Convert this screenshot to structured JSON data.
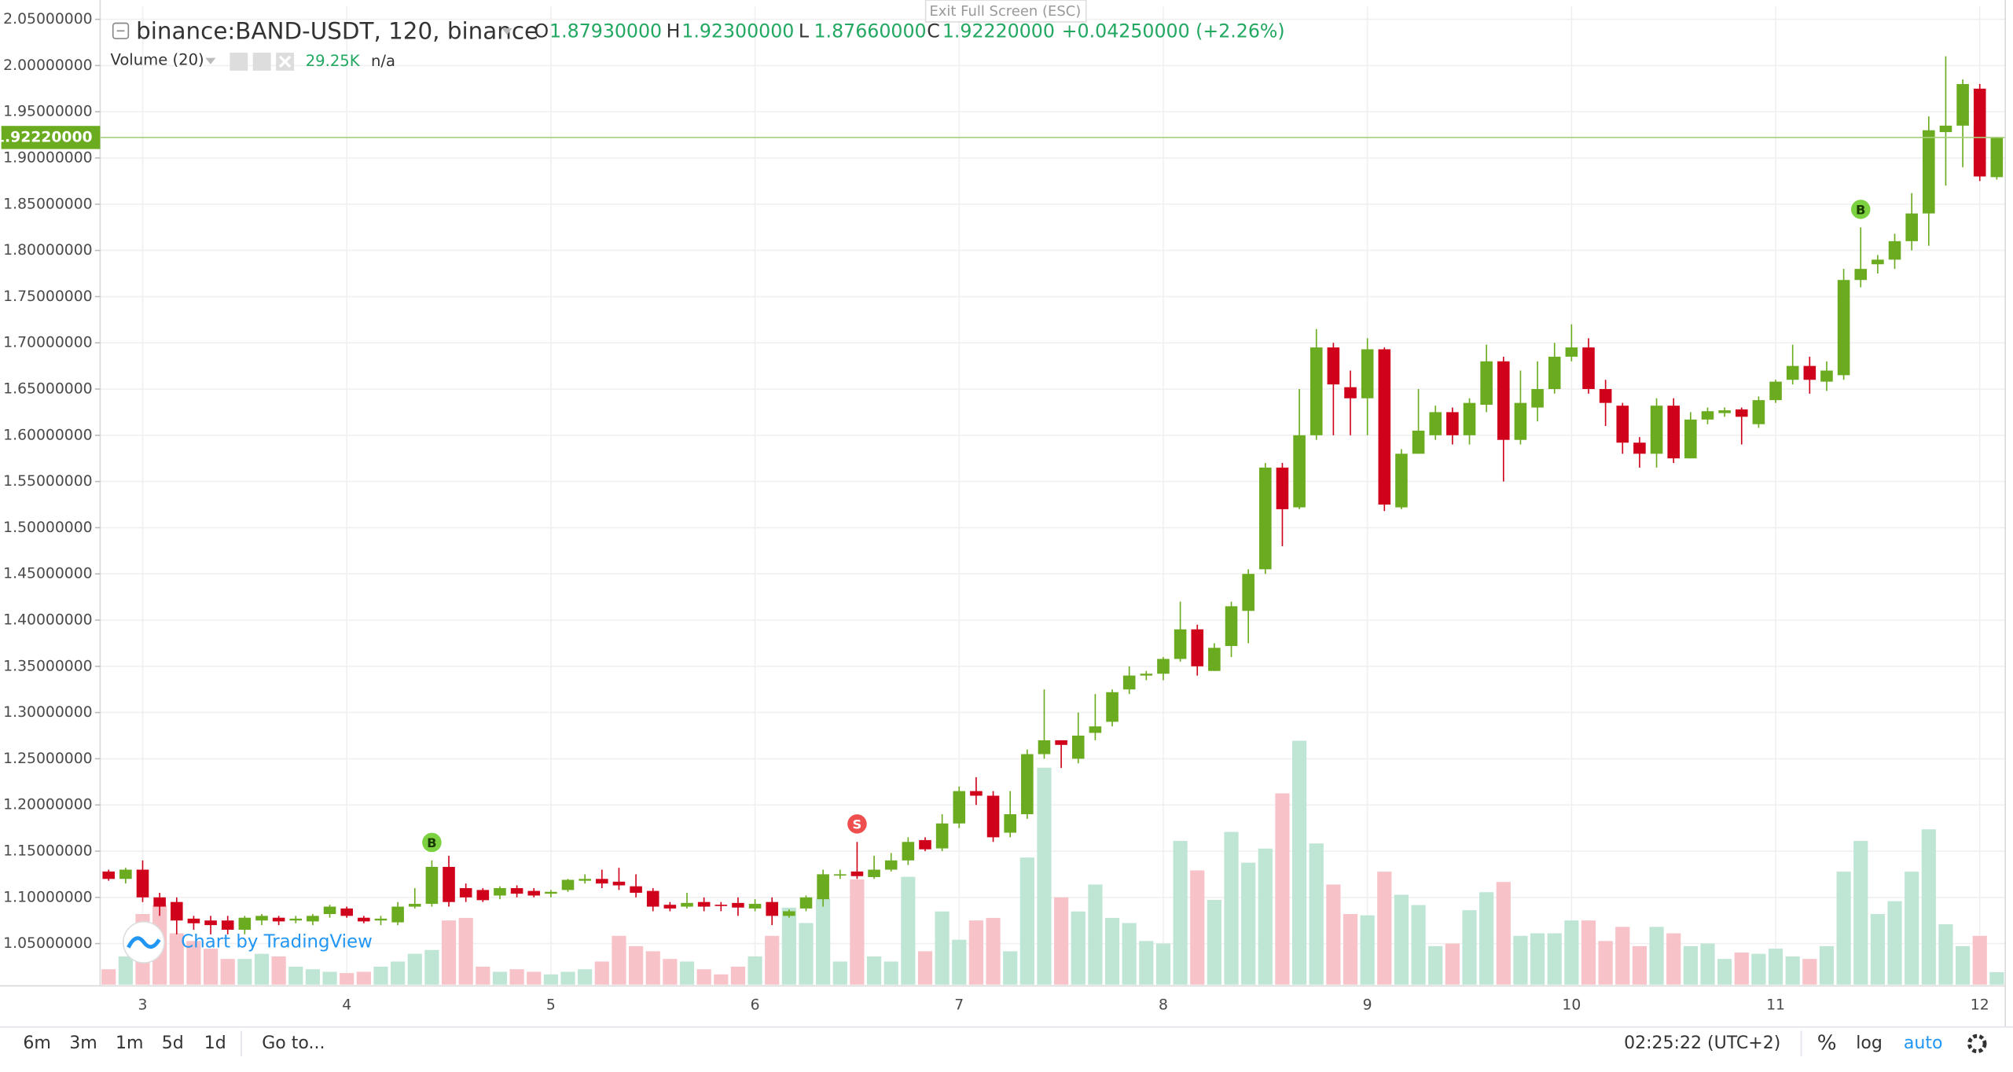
{
  "chart_data": {
    "type": "candlestick",
    "title": "binance:BAND-USDT, 120, binance",
    "legend": {
      "open_key": "O",
      "open": "1.87930000",
      "high_key": "H",
      "high": "1.92300000",
      "low_key": "L",
      "low": "1.87660000",
      "close_key": "C",
      "close": "1.92220000",
      "change": "+0.04250000 (+2.26%)"
    },
    "volume_legend": {
      "title": "Volume (20)",
      "value": "29.25K",
      "ma": "n/a"
    },
    "exit_hint": "Exit Full Screen (ESC)",
    "watermark": "Chart by TradingView",
    "last_price": {
      "value": 1.9222,
      "label": "1.92220000"
    },
    "up_color": "#6aab1f",
    "down_color": "#d0021b",
    "volume_up_color": "#bfe5d5",
    "volume_down_color": "#f7c2c8",
    "grid": true,
    "ylim": [
      1.0056,
      2.0639
    ],
    "yticks": [
      {
        "value": 1.05,
        "label": "1.05000000"
      },
      {
        "value": 1.1,
        "label": "1.10000000"
      },
      {
        "value": 1.15,
        "label": "1.15000000"
      },
      {
        "value": 1.2,
        "label": "1.20000000"
      },
      {
        "value": 1.25,
        "label": "1.25000000"
      },
      {
        "value": 1.3,
        "label": "1.30000000"
      },
      {
        "value": 1.35,
        "label": "1.35000000"
      },
      {
        "value": 1.4,
        "label": "1.40000000"
      },
      {
        "value": 1.45,
        "label": "1.45000000"
      },
      {
        "value": 1.5,
        "label": "1.50000000"
      },
      {
        "value": 1.55,
        "label": "1.55000000"
      },
      {
        "value": 1.6,
        "label": "1.60000000"
      },
      {
        "value": 1.65,
        "label": "1.65000000"
      },
      {
        "value": 1.7,
        "label": "1.70000000"
      },
      {
        "value": 1.75,
        "label": "1.75000000"
      },
      {
        "value": 1.8,
        "label": "1.80000000"
      },
      {
        "value": 1.85,
        "label": "1.85000000"
      },
      {
        "value": 1.9,
        "label": "1.90000000"
      },
      {
        "value": 1.95,
        "label": "1.95000000"
      },
      {
        "value": 2.0,
        "label": "2.00000000"
      },
      {
        "value": 2.05,
        "label": "2.05000000"
      }
    ],
    "categories": [
      null,
      null,
      "3",
      null,
      null,
      null,
      null,
      null,
      null,
      null,
      null,
      null,
      null,
      null,
      "4",
      null,
      null,
      null,
      null,
      null,
      null,
      null,
      null,
      null,
      null,
      null,
      "5",
      null,
      null,
      null,
      null,
      null,
      null,
      null,
      null,
      null,
      null,
      null,
      "6",
      null,
      null,
      null,
      null,
      null,
      null,
      null,
      null,
      null,
      null,
      null,
      "7",
      null,
      null,
      null,
      null,
      null,
      null,
      null,
      null,
      null,
      null,
      null,
      "8",
      null,
      null,
      null,
      null,
      null,
      null,
      null,
      null,
      null,
      null,
      null,
      "9",
      null,
      null,
      null,
      null,
      null,
      null,
      null,
      null,
      null,
      null,
      null,
      "10",
      null,
      null,
      null,
      null,
      null,
      null,
      null,
      null,
      null,
      null,
      null,
      "11",
      null,
      null,
      null,
      null,
      null,
      null,
      null,
      null,
      null,
      null,
      null,
      "12",
      null
    ],
    "open": [
      1.128,
      1.12,
      1.13,
      1.1,
      1.095,
      1.077,
      1.075,
      1.075,
      1.065,
      1.075,
      1.078,
      1.075,
      1.074,
      1.082,
      1.088,
      1.078,
      1.075,
      1.073,
      1.09,
      1.093,
      1.133,
      1.11,
      1.108,
      1.102,
      1.11,
      1.107,
      1.104,
      1.108,
      1.118,
      1.12,
      1.117,
      1.112,
      1.107,
      1.092,
      1.09,
      1.095,
      1.092,
      1.094,
      1.088,
      1.095,
      1.08,
      1.088,
      1.098,
      1.124,
      1.128,
      1.122,
      1.13,
      1.14,
      1.162,
      1.153,
      1.18,
      1.215,
      1.21,
      1.17,
      1.19,
      1.255,
      1.27,
      1.25,
      1.278,
      1.29,
      1.325,
      1.34,
      1.342,
      1.358,
      1.39,
      1.345,
      1.372,
      1.41,
      1.455,
      1.565,
      1.522,
      1.6,
      1.695,
      1.652,
      1.64,
      1.693,
      1.522,
      1.58,
      1.6,
      1.625,
      1.6,
      1.633,
      1.68,
      1.595,
      1.63,
      1.65,
      1.685,
      1.695,
      1.65,
      1.632,
      1.592,
      1.58,
      1.632,
      1.575,
      1.617,
      1.624,
      1.628,
      1.612,
      1.638,
      1.66,
      1.675,
      1.658,
      1.665,
      1.768,
      1.785,
      1.79,
      1.81,
      1.84,
      1.928,
      1.935,
      1.975,
      1.8793
    ],
    "high": [
      1.13,
      1.132,
      1.14,
      1.105,
      1.1,
      1.08,
      1.08,
      1.08,
      1.08,
      1.082,
      1.08,
      1.08,
      1.082,
      1.092,
      1.09,
      1.08,
      1.08,
      1.095,
      1.11,
      1.14,
      1.145,
      1.115,
      1.11,
      1.112,
      1.113,
      1.11,
      1.108,
      1.12,
      1.125,
      1.13,
      1.132,
      1.125,
      1.11,
      1.095,
      1.105,
      1.1,
      1.095,
      1.1,
      1.098,
      1.1,
      1.087,
      1.102,
      1.13,
      1.13,
      1.16,
      1.145,
      1.148,
      1.165,
      1.165,
      1.19,
      1.22,
      1.23,
      1.215,
      1.215,
      1.26,
      1.325,
      1.27,
      1.3,
      1.32,
      1.325,
      1.35,
      1.345,
      1.36,
      1.42,
      1.395,
      1.375,
      1.42,
      1.455,
      1.57,
      1.57,
      1.65,
      1.715,
      1.7,
      1.67,
      1.705,
      1.695,
      1.585,
      1.65,
      1.632,
      1.63,
      1.64,
      1.698,
      1.685,
      1.67,
      1.68,
      1.7,
      1.72,
      1.705,
      1.66,
      1.635,
      1.598,
      1.64,
      1.64,
      1.625,
      1.63,
      1.63,
      1.63,
      1.642,
      1.66,
      1.698,
      1.685,
      1.68,
      1.78,
      1.825,
      1.795,
      1.818,
      1.862,
      1.945,
      2.01,
      1.985,
      1.98,
      1.923
    ],
    "low": [
      1.118,
      1.115,
      1.095,
      1.08,
      1.06,
      1.065,
      1.06,
      1.06,
      1.06,
      1.07,
      1.07,
      1.072,
      1.07,
      1.078,
      1.078,
      1.072,
      1.07,
      1.07,
      1.088,
      1.09,
      1.09,
      1.095,
      1.095,
      1.098,
      1.1,
      1.1,
      1.1,
      1.106,
      1.115,
      1.11,
      1.108,
      1.1,
      1.085,
      1.085,
      1.088,
      1.085,
      1.085,
      1.08,
      1.085,
      1.07,
      1.078,
      1.085,
      1.09,
      1.12,
      1.12,
      1.12,
      1.128,
      1.135,
      1.15,
      1.15,
      1.175,
      1.2,
      1.16,
      1.165,
      1.185,
      1.25,
      1.24,
      1.245,
      1.27,
      1.285,
      1.32,
      1.335,
      1.335,
      1.355,
      1.34,
      1.345,
      1.36,
      1.375,
      1.45,
      1.48,
      1.52,
      1.595,
      1.6,
      1.6,
      1.6,
      1.518,
      1.52,
      1.58,
      1.595,
      1.59,
      1.59,
      1.625,
      1.55,
      1.59,
      1.615,
      1.645,
      1.68,
      1.645,
      1.61,
      1.58,
      1.565,
      1.565,
      1.57,
      1.575,
      1.612,
      1.62,
      1.59,
      1.608,
      1.635,
      1.655,
      1.645,
      1.648,
      1.66,
      1.76,
      1.775,
      1.78,
      1.8,
      1.805,
      1.87,
      1.89,
      1.875,
      1.8766
    ],
    "close": [
      1.12,
      1.13,
      1.1,
      1.09,
      1.075,
      1.072,
      1.07,
      1.065,
      1.078,
      1.08,
      1.074,
      1.077,
      1.08,
      1.09,
      1.08,
      1.074,
      1.077,
      1.09,
      1.093,
      1.133,
      1.095,
      1.1,
      1.097,
      1.11,
      1.104,
      1.102,
      1.106,
      1.119,
      1.12,
      1.115,
      1.113,
      1.105,
      1.09,
      1.088,
      1.094,
      1.09,
      1.091,
      1.089,
      1.093,
      1.08,
      1.085,
      1.1,
      1.125,
      1.125,
      1.123,
      1.13,
      1.14,
      1.16,
      1.152,
      1.18,
      1.215,
      1.21,
      1.165,
      1.19,
      1.255,
      1.27,
      1.265,
      1.275,
      1.285,
      1.322,
      1.34,
      1.342,
      1.358,
      1.39,
      1.35,
      1.37,
      1.415,
      1.45,
      1.565,
      1.52,
      1.6,
      1.695,
      1.655,
      1.64,
      1.693,
      1.525,
      1.58,
      1.605,
      1.625,
      1.6,
      1.635,
      1.68,
      1.595,
      1.635,
      1.65,
      1.685,
      1.695,
      1.65,
      1.635,
      1.592,
      1.58,
      1.632,
      1.575,
      1.617,
      1.626,
      1.627,
      1.62,
      1.638,
      1.658,
      1.675,
      1.66,
      1.67,
      1.768,
      1.78,
      1.79,
      1.81,
      1.84,
      1.93,
      1.935,
      1.98,
      1.88,
      1.9222
    ],
    "volume": [
      36,
      66,
      165,
      186,
      120,
      102,
      84,
      60,
      60,
      72,
      66,
      42,
      36,
      30,
      27,
      30,
      42,
      54,
      72,
      81,
      150,
      156,
      42,
      30,
      36,
      30,
      24,
      30,
      36,
      54,
      114,
      90,
      78,
      60,
      54,
      36,
      24,
      42,
      66,
      114,
      180,
      144,
      201,
      54,
      246,
      66,
      54,
      252,
      78,
      171,
      105,
      150,
      156,
      78,
      297,
      507,
      204,
      171,
      234,
      156,
      144,
      102,
      96,
      336,
      267,
      198,
      357,
      285,
      318,
      447,
      570,
      330,
      234,
      165,
      162,
      264,
      210,
      186,
      90,
      96,
      174,
      216,
      240,
      114,
      120,
      120,
      150,
      150,
      102,
      135,
      90,
      135,
      120,
      90,
      96,
      60,
      75,
      72,
      84,
      66,
      60,
      90,
      264,
      336,
      165,
      195,
      264,
      363,
      141,
      90,
      114,
      29.25
    ],
    "signals": [
      null,
      null,
      null,
      null,
      null,
      null,
      null,
      null,
      null,
      null,
      null,
      null,
      null,
      null,
      null,
      null,
      null,
      null,
      null,
      "B",
      null,
      null,
      null,
      null,
      null,
      null,
      null,
      null,
      null,
      null,
      null,
      null,
      null,
      null,
      null,
      null,
      null,
      null,
      null,
      null,
      null,
      null,
      null,
      null,
      "S",
      null,
      null,
      null,
      null,
      null,
      null,
      null,
      null,
      null,
      null,
      null,
      null,
      null,
      null,
      null,
      null,
      null,
      null,
      null,
      null,
      null,
      null,
      null,
      null,
      null,
      null,
      null,
      null,
      null,
      null,
      null,
      null,
      null,
      null,
      null,
      null,
      null,
      null,
      null,
      null,
      null,
      null,
      null,
      null,
      null,
      null,
      null,
      null,
      null,
      null,
      null,
      null,
      null,
      null,
      null,
      null,
      null,
      null,
      "B",
      null,
      null,
      null,
      null,
      null,
      null,
      null,
      null
    ]
  },
  "toolbar": {
    "ranges": [
      "6m",
      "3m",
      "1m",
      "5d",
      "1d"
    ],
    "goto": "Go to...",
    "clock": "02:25:22 (UTC+2)",
    "percent": "%",
    "log": "log",
    "auto": "auto"
  }
}
